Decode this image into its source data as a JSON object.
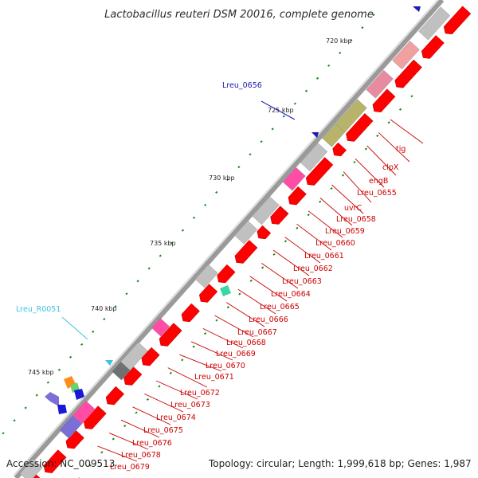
{
  "title": "Lactobacillus reuteri DSM 20016, complete genome",
  "footer": {
    "accession": "Accession: NC_009513",
    "topology": "Topology: circular; Length: 1,999,618 bp; Genes: 1,987"
  },
  "ticks": [
    {
      "label": "720 kbp"
    },
    {
      "label": "725 kbp"
    },
    {
      "label": "730 kbp"
    },
    {
      "label": "735 kbp"
    },
    {
      "label": "740 kbp"
    },
    {
      "label": "745 kbp"
    }
  ],
  "genes": [
    {
      "label": "tig"
    },
    {
      "label": "clpX"
    },
    {
      "label": "engB"
    },
    {
      "label": "Lreu_0655"
    },
    {
      "label": "uvrC"
    },
    {
      "label": "Lreu_0658"
    },
    {
      "label": "Lreu_0659"
    },
    {
      "label": "Lreu_0660"
    },
    {
      "label": "Lreu_0661"
    },
    {
      "label": "Lreu_0662"
    },
    {
      "label": "Lreu_0663"
    },
    {
      "label": "Lreu_0664"
    },
    {
      "label": "Lreu_0665"
    },
    {
      "label": "Lreu_0666"
    },
    {
      "label": "Lreu_0667"
    },
    {
      "label": "Lreu_0668"
    },
    {
      "label": "Lreu_0669"
    },
    {
      "label": "Lreu_0670"
    },
    {
      "label": "Lreu_0671"
    },
    {
      "label": "Lreu_0672"
    },
    {
      "label": "Lreu_0673"
    },
    {
      "label": "Lreu_0674"
    },
    {
      "label": "Lreu_0675"
    },
    {
      "label": "Lreu_0676"
    },
    {
      "label": "Lreu_0678"
    },
    {
      "label": "Lreu_0679"
    }
  ],
  "features": [
    {
      "label": "Lreu_0656",
      "color": "#1a1ab8"
    },
    {
      "label": "Lreu_R0051",
      "color": "#3cc3e0"
    }
  ],
  "colors": {
    "cds": "#ff0000",
    "rna_cog": "#ff4da6",
    "gc_gray": "#c0c0c0",
    "olive": "#b7b36a",
    "gc_tick": "#1a8a1a",
    "label_red": "#cc0000"
  }
}
